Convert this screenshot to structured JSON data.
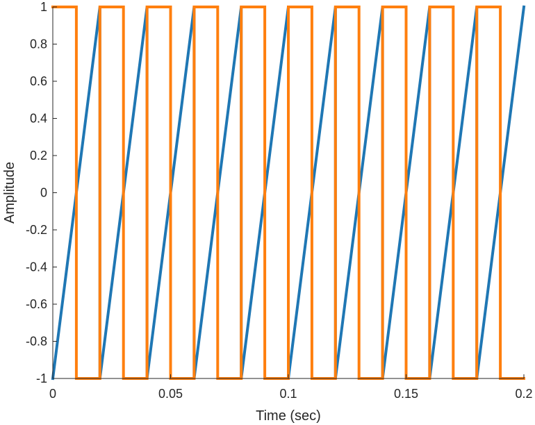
{
  "chart_data": {
    "type": "line",
    "title": "",
    "xlabel": "Time (sec)",
    "ylabel": "Amplitude",
    "xlim": [
      0,
      0.2
    ],
    "ylim": [
      -1,
      1
    ],
    "xticks": [
      0,
      0.05,
      0.1,
      0.15,
      0.2
    ],
    "xtick_labels": [
      "0",
      "0.05",
      "0.1",
      "0.15",
      "0.2"
    ],
    "yticks": [
      -1,
      -0.8,
      -0.6,
      -0.4,
      -0.2,
      0,
      0.2,
      0.4,
      0.6,
      0.8,
      1
    ],
    "ytick_labels": [
      "-1",
      "-0.8",
      "-0.6",
      "-0.4",
      "-0.2",
      "0",
      "0.2",
      "0.4",
      "0.6",
      "0.8",
      "1"
    ],
    "grid": false,
    "legend": "none",
    "series": [
      {
        "color": "#1f77b4",
        "x": [
          0,
          0.02,
          0.02,
          0.04,
          0.04,
          0.06,
          0.06,
          0.08,
          0.08,
          0.1,
          0.1,
          0.12,
          0.12,
          0.14,
          0.14,
          0.16,
          0.16,
          0.18,
          0.18,
          0.2
        ],
        "y": [
          -1,
          1,
          -1,
          1,
          -1,
          1,
          -1,
          1,
          -1,
          1,
          -1,
          1,
          -1,
          1,
          -1,
          1,
          -1,
          1,
          -1,
          1
        ]
      },
      {
        "color": "#ff7f0e",
        "x": [
          0,
          0.01,
          0.01,
          0.02,
          0.02,
          0.03,
          0.03,
          0.04,
          0.04,
          0.05,
          0.05,
          0.06,
          0.06,
          0.07,
          0.07,
          0.08,
          0.08,
          0.09,
          0.09,
          0.1,
          0.1,
          0.11,
          0.11,
          0.12,
          0.12,
          0.13,
          0.13,
          0.14,
          0.14,
          0.15,
          0.15,
          0.16,
          0.16,
          0.17,
          0.17,
          0.18,
          0.18,
          0.19,
          0.19,
          0.2
        ],
        "y": [
          1,
          1,
          -1,
          -1,
          1,
          1,
          -1,
          -1,
          1,
          1,
          -1,
          -1,
          1,
          1,
          -1,
          -1,
          1,
          1,
          -1,
          -1,
          1,
          1,
          -1,
          -1,
          1,
          1,
          -1,
          -1,
          1,
          1,
          -1,
          -1,
          1,
          1,
          -1,
          -1,
          1,
          1,
          -1,
          -1
        ]
      }
    ]
  }
}
